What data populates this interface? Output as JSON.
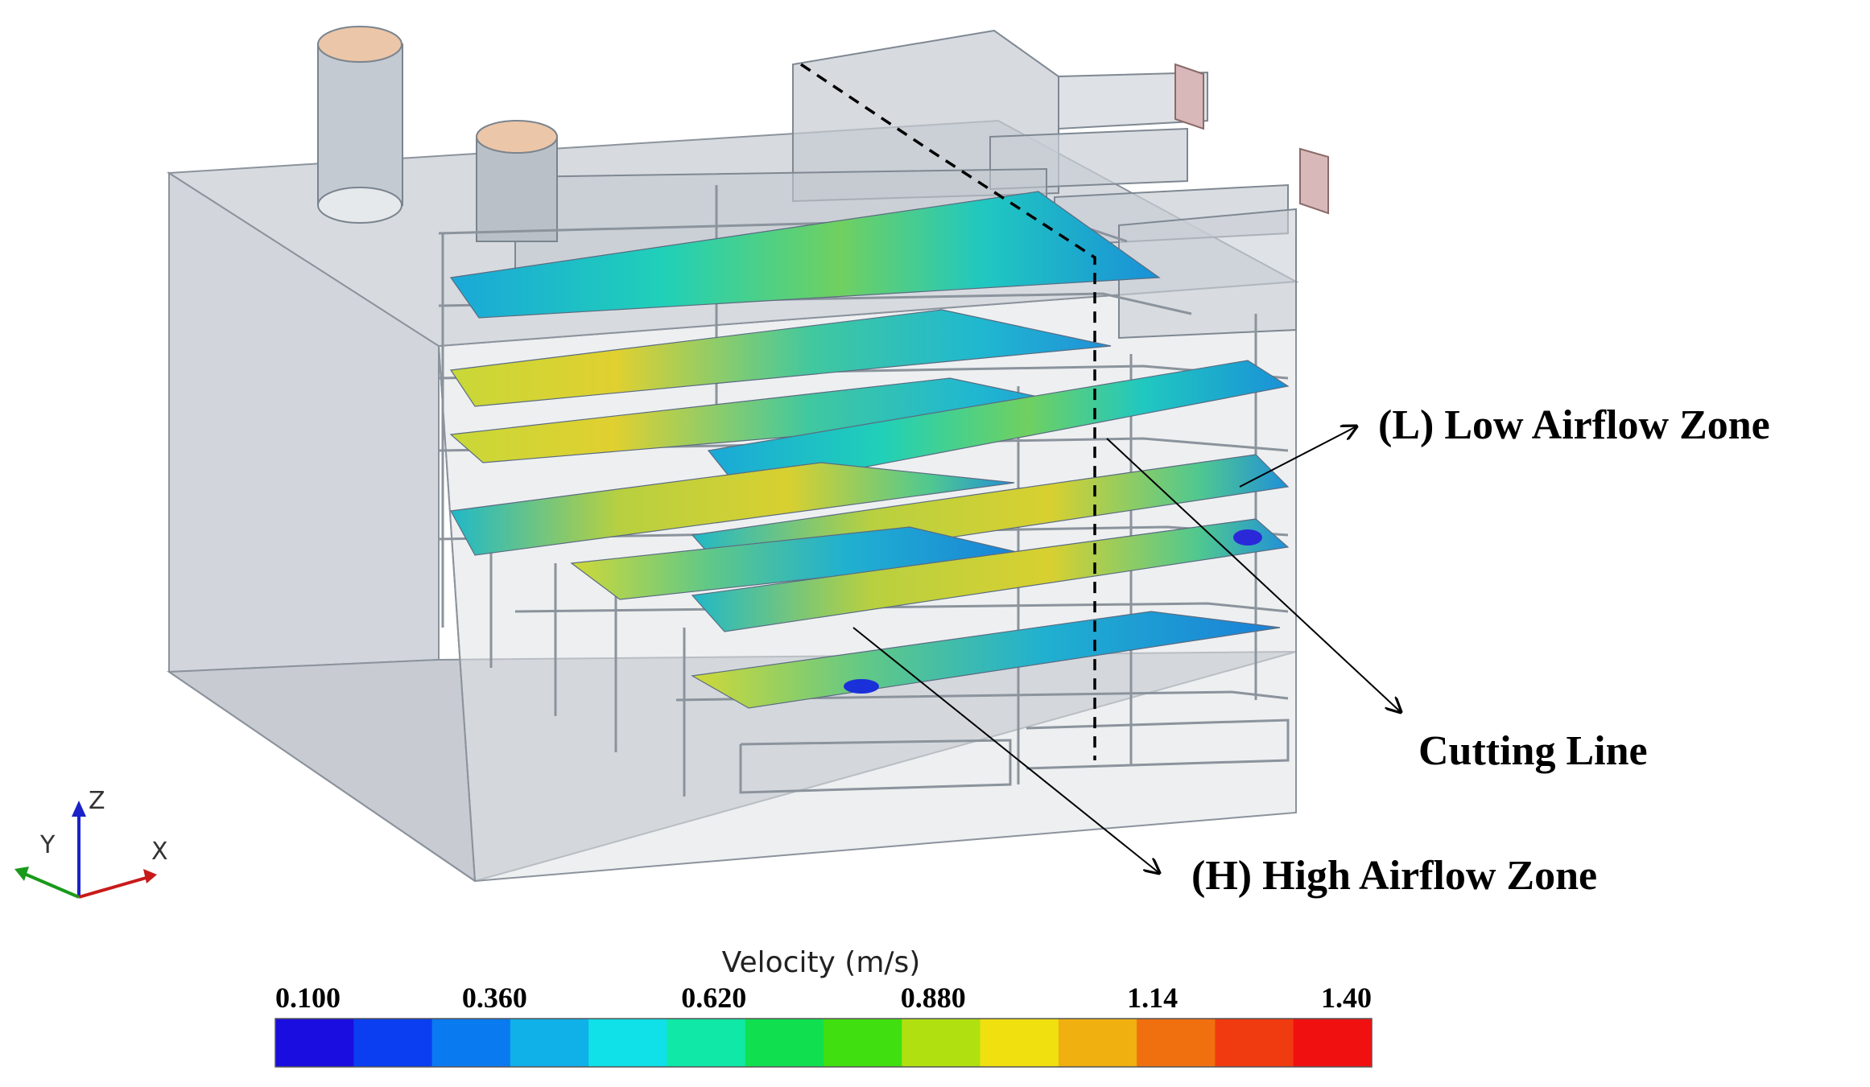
{
  "annotations": {
    "low_zone": "(L) Low Airflow Zone",
    "high_zone": "(H) High Airflow Zone",
    "cutting_line": "Cutting Line"
  },
  "axes_triad": {
    "z": "Z",
    "y": "Y",
    "x": "X"
  },
  "colorbar": {
    "title": "Velocity (m/s)",
    "ticks": [
      "0.100",
      "0.360",
      "0.620",
      "0.880",
      "1.14",
      "1.40"
    ],
    "min": 0.1,
    "max": 1.4,
    "colors": [
      "#1a0de0",
      "#0a3ef0",
      "#0a7af0",
      "#10b0e8",
      "#10e0e8",
      "#10e8a8",
      "#10e050",
      "#40e010",
      "#b0e010",
      "#f0e010",
      "#f0b010",
      "#f07010",
      "#f03a10",
      "#f01010"
    ]
  }
}
